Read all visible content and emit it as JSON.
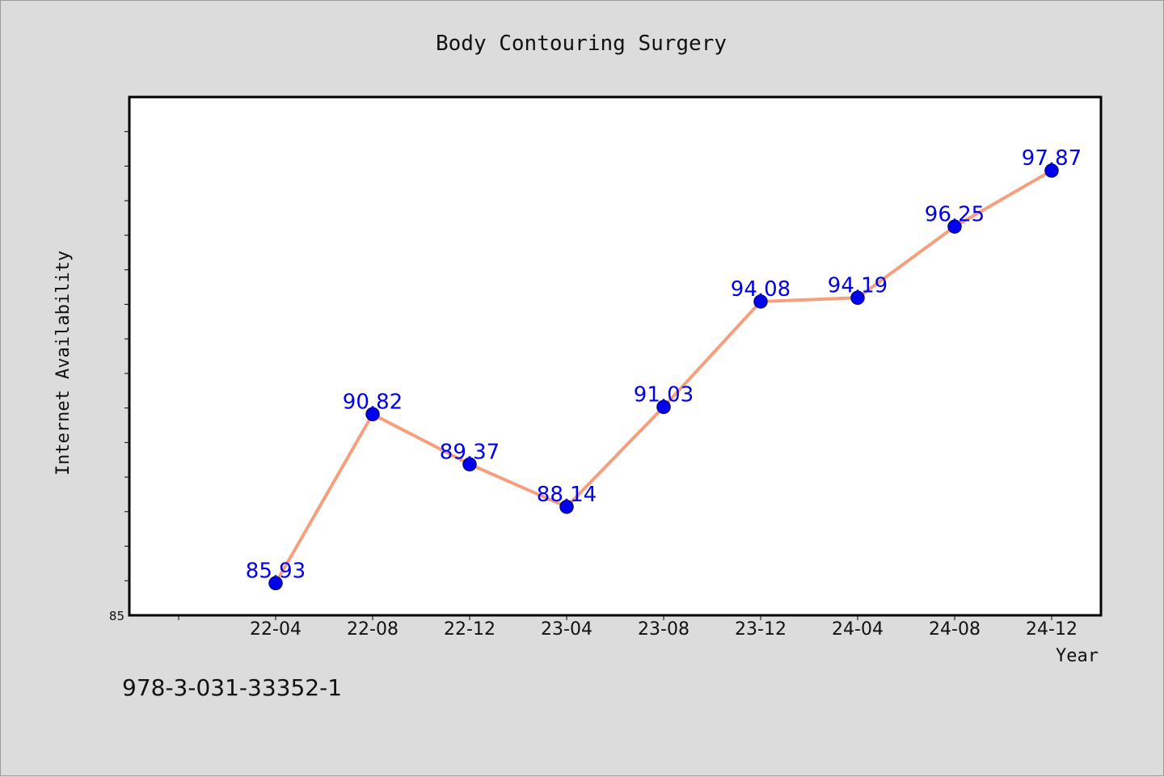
{
  "chart_data": {
    "type": "line",
    "title": "Body Contouring Surgery",
    "xlabel": "Year",
    "ylabel": "Internet Availability",
    "categories": [
      "22-04",
      "22-08",
      "22-12",
      "23-04",
      "23-08",
      "23-12",
      "24-04",
      "24-08",
      "24-12"
    ],
    "series": [
      {
        "values": [
          85.93,
          90.82,
          89.37,
          88.14,
          91.03,
          94.08,
          94.19,
          96.25,
          97.87
        ],
        "labels": [
          "85.93",
          "90.82",
          "89.37",
          "88.14",
          "91.03",
          "94.08",
          "94.19",
          "96.25",
          "97.87"
        ]
      }
    ],
    "ylim": [
      85,
      100
    ],
    "y_tick_labels": [
      "85"
    ],
    "y_minor_step": 1,
    "grid": false,
    "legend": "none",
    "colors": {
      "line": "#f4a07e",
      "marker": "#0000ee",
      "marker_edge": "#00008b",
      "label": "#0000ee",
      "plot_bg": "#ffffff",
      "page_bg": "#dcdcdc"
    }
  },
  "footer": {
    "isbn": "978-3-031-33352-1"
  }
}
